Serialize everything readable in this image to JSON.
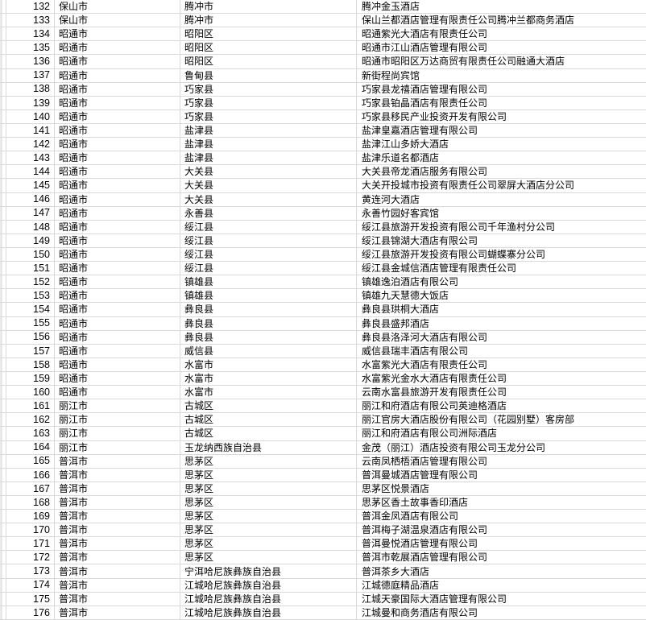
{
  "colors": {
    "background": "#ffffff",
    "gridline": "#d9d9d9",
    "left_strip": "#e9e9e9",
    "text": "#000000"
  },
  "spreadsheet": {
    "first_row_number": "132",
    "last_row_number": "176",
    "rows": [
      {
        "num": "132",
        "city": "保山市",
        "county": "腾冲市",
        "hotel": "腾冲金玉酒店"
      },
      {
        "num": "133",
        "city": "保山市",
        "county": "腾冲市",
        "hotel": "保山兰都酒店管理有限责任公司腾冲兰都商务酒店"
      },
      {
        "num": "134",
        "city": "昭通市",
        "county": "昭阳区",
        "hotel": "昭通紫光大酒店有限责任公司"
      },
      {
        "num": "135",
        "city": "昭通市",
        "county": "昭阳区",
        "hotel": "昭通市江山酒店管理有限公司"
      },
      {
        "num": "136",
        "city": "昭通市",
        "county": "昭阳区",
        "hotel": "昭通市昭阳区万达商贸有限责任公司融通大酒店"
      },
      {
        "num": "137",
        "city": "昭通市",
        "county": "鲁甸县",
        "hotel": "新街程尚宾馆"
      },
      {
        "num": "138",
        "city": "昭通市",
        "county": "巧家县",
        "hotel": "巧家县龙禧酒店管理有限公司"
      },
      {
        "num": "139",
        "city": "昭通市",
        "county": "巧家县",
        "hotel": "巧家县铂晶酒店有限责任公司"
      },
      {
        "num": "140",
        "city": "昭通市",
        "county": "巧家县",
        "hotel": "巧家县移民产业投资开发有限公司"
      },
      {
        "num": "141",
        "city": "昭通市",
        "county": "盐津县",
        "hotel": "盐津皇嘉酒店管理有限公司"
      },
      {
        "num": "142",
        "city": "昭通市",
        "county": "盐津县",
        "hotel": "盐津江山多娇大酒店"
      },
      {
        "num": "143",
        "city": "昭通市",
        "county": "盐津县",
        "hotel": "盐津乐道名都酒店"
      },
      {
        "num": "144",
        "city": "昭通市",
        "county": "大关县",
        "hotel": "大关县帝龙酒店服务有限公司"
      },
      {
        "num": "145",
        "city": "昭通市",
        "county": "大关县",
        "hotel": "大关开投城市投资有限责任公司翠屏大酒店分公司"
      },
      {
        "num": "146",
        "city": "昭通市",
        "county": "大关县",
        "hotel": "黄连河大酒店"
      },
      {
        "num": "147",
        "city": "昭通市",
        "county": "永善县",
        "hotel": "永善竹园好客宾馆"
      },
      {
        "num": "148",
        "city": "昭通市",
        "county": "绥江县",
        "hotel": "绥江县旅游开发投资有限公司千年渔村分公司"
      },
      {
        "num": "149",
        "city": "昭通市",
        "county": "绥江县",
        "hotel": "绥江县锦湖大酒店有限公司"
      },
      {
        "num": "150",
        "city": "昭通市",
        "county": "绥江县",
        "hotel": "绥江县旅游开发投资有限公司蝴蝶寨分公司"
      },
      {
        "num": "151",
        "city": "昭通市",
        "county": "绥江县",
        "hotel": "绥江县金城信酒店管理有限责任公司"
      },
      {
        "num": "152",
        "city": "昭通市",
        "county": "镇雄县",
        "hotel": "镇雄逸泊酒店有限公司"
      },
      {
        "num": "153",
        "city": "昭通市",
        "county": "镇雄县",
        "hotel": "镇雄九天慧德大饭店"
      },
      {
        "num": "154",
        "city": "昭通市",
        "county": "彝良县",
        "hotel": "彝良县珙桐大酒店"
      },
      {
        "num": "155",
        "city": "昭通市",
        "county": "彝良县",
        "hotel": "彝良县盛邦酒店"
      },
      {
        "num": "156",
        "city": "昭通市",
        "county": "彝良县",
        "hotel": "彝良县洛泽河大酒店有限公司"
      },
      {
        "num": "157",
        "city": "昭通市",
        "county": "威信县",
        "hotel": "威信县瑞丰酒店有限公司"
      },
      {
        "num": "158",
        "city": "昭通市",
        "county": "水富市",
        "hotel": "水富紫光大酒店有限责任公司"
      },
      {
        "num": "159",
        "city": "昭通市",
        "county": "水富市",
        "hotel": "水富紫光金水大酒店有限责任公司"
      },
      {
        "num": "160",
        "city": "昭通市",
        "county": "水富市",
        "hotel": "云南水富县旅游开发有限责任公司"
      },
      {
        "num": "161",
        "city": "丽江市",
        "county": "古城区",
        "hotel": "丽江和府酒店有限公司英迪格酒店"
      },
      {
        "num": "162",
        "city": "丽江市",
        "county": "古城区",
        "hotel": "丽江官房大酒店股份有限公司（花园别墅）客房部"
      },
      {
        "num": "163",
        "city": "丽江市",
        "county": "古城区",
        "hotel": "丽江和府酒店有限公司洲际酒店"
      },
      {
        "num": "164",
        "city": "丽江市",
        "county": "玉龙纳西族自治县",
        "hotel": "金茂（丽江）酒店投资有限公司玉龙分公司"
      },
      {
        "num": "165",
        "city": "普洱市",
        "county": "思茅区",
        "hotel": "云南凤栖梧酒店管理有限公司"
      },
      {
        "num": "166",
        "city": "普洱市",
        "county": "思茅区",
        "hotel": "普洱曼城酒店管理有限公司"
      },
      {
        "num": "167",
        "city": "普洱市",
        "county": "思茅区",
        "hotel": "思茅区悦景酒店"
      },
      {
        "num": "168",
        "city": "普洱市",
        "county": "思茅区",
        "hotel": "思茅区香土故事香印酒店"
      },
      {
        "num": "169",
        "city": "普洱市",
        "county": "思茅区",
        "hotel": "普洱金凤酒店有限公司"
      },
      {
        "num": "170",
        "city": "普洱市",
        "county": "思茅区",
        "hotel": "普洱梅子湖温泉酒店有限公司"
      },
      {
        "num": "171",
        "city": "普洱市",
        "county": "思茅区",
        "hotel": "普洱曼悦酒店管理有限公司"
      },
      {
        "num": "172",
        "city": "普洱市",
        "county": "思茅区",
        "hotel": "普洱市乾展酒店管理有限公司"
      },
      {
        "num": "173",
        "city": "普洱市",
        "county": "宁洱哈尼族彝族自治县",
        "hotel": "普洱茶乡大酒店"
      },
      {
        "num": "174",
        "city": "普洱市",
        "county": "江城哈尼族彝族自治县",
        "hotel": "江城德庭精品酒店"
      },
      {
        "num": "175",
        "city": "普洱市",
        "county": "江城哈尼族彝族自治县",
        "hotel": "江城天豪国际大酒店管理有限公司"
      },
      {
        "num": "176",
        "city": "普洱市",
        "county": "江城哈尼族彝族自治县",
        "hotel": "江城曼和商务酒店有限公司"
      }
    ]
  }
}
